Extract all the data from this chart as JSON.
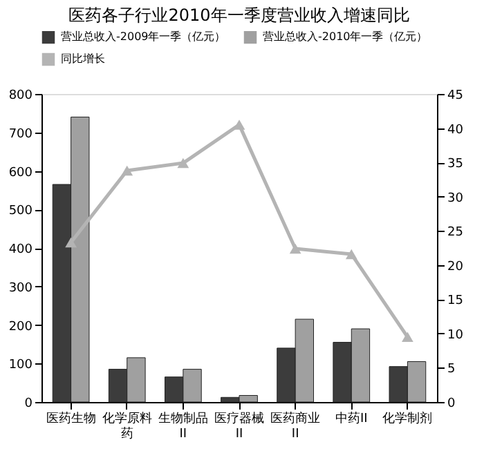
{
  "chart_data": {
    "type": "bar",
    "title": "医药各子行业2010年一季度营业收入增速同比",
    "categories": [
      "医药生物",
      "化学原料药",
      "生物制品II",
      "医疗器械II",
      "医药商业II",
      "中药II",
      "化学制剂"
    ],
    "series": [
      {
        "name": "营业总收入-2009年一季（亿元）",
        "color": "#3c3c3c",
        "values": [
          565,
          85,
          65,
          12,
          140,
          155,
          92
        ]
      },
      {
        "name": "营业总收入-2010年一季（亿元）",
        "color": "#a0a0a0",
        "values": [
          740,
          115,
          85,
          17,
          215,
          190,
          105
        ]
      },
      {
        "name": "同比增长",
        "type": "line",
        "axis": "y2",
        "marker": "triangle",
        "color": "#b4b4b4",
        "values": [
          23.3,
          33.8,
          34.9,
          40.5,
          22.4,
          21.6,
          9.5
        ]
      }
    ],
    "ylim": [
      0,
      800
    ],
    "yticks": [
      0,
      100,
      200,
      300,
      400,
      500,
      600,
      700,
      800
    ],
    "y2lim": [
      0,
      45
    ],
    "y2ticks": [
      0,
      5,
      10,
      15,
      20,
      25,
      30,
      35,
      40,
      45
    ],
    "grid": false,
    "legend": "top"
  }
}
